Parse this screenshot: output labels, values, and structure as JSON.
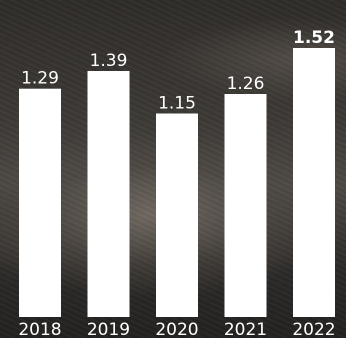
{
  "chart_data": {
    "type": "bar",
    "categories": [
      "2018",
      "2019",
      "2020",
      "2021",
      "2022"
    ],
    "values": [
      1.29,
      1.39,
      1.15,
      1.26,
      1.52
    ],
    "value_labels": [
      "1.29",
      "1.39",
      "1.15",
      "1.26",
      "1.52"
    ],
    "highlight_index": 4,
    "bar_color": "#ffffff",
    "label_color": "#ffffff",
    "title": "",
    "xlabel": "",
    "ylabel": "",
    "ylim": [
      0,
      1.52
    ],
    "grid": false,
    "legend": "none"
  }
}
